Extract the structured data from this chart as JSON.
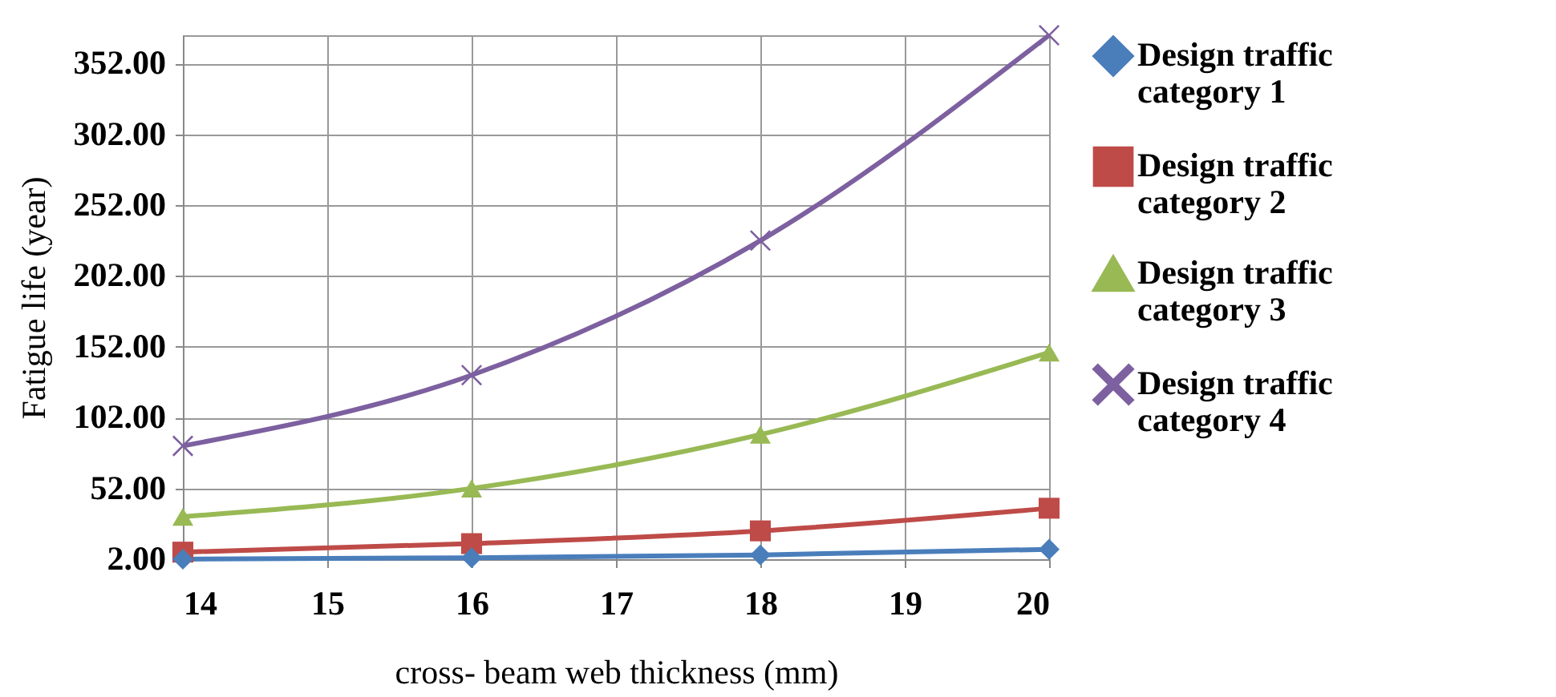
{
  "chart_data": {
    "type": "line",
    "xlabel": "cross- beam web thickness (mm)",
    "ylabel": "Fatigue life (year)",
    "x": [
      14,
      16,
      18,
      20
    ],
    "series": [
      {
        "name": "Design traffic category 1",
        "color": "#4a7ebb",
        "marker": "diamond",
        "values": [
          2,
          3,
          5,
          9
        ]
      },
      {
        "name": "Design traffic category 2",
        "color": "#be4b48",
        "marker": "square",
        "values": [
          7,
          13,
          22,
          38
        ]
      },
      {
        "name": "Design traffic category 3",
        "color": "#98b954",
        "marker": "triangle",
        "values": [
          32,
          52,
          90,
          148
        ]
      },
      {
        "name": "Design traffic category 4",
        "color": "#7d60a0",
        "marker": "cross",
        "values": [
          82,
          132,
          227,
          372
        ]
      }
    ],
    "xlim": [
      14,
      20
    ],
    "xticks": [
      14,
      15,
      16,
      17,
      18,
      19,
      20
    ],
    "ylim": [
      2,
      372
    ],
    "yticks": [
      {
        "value": 2,
        "label": "2.00"
      },
      {
        "value": 52,
        "label": "52.00"
      },
      {
        "value": 102,
        "label": "102.00"
      },
      {
        "value": 152,
        "label": "152.00"
      },
      {
        "value": 202,
        "label": "202.00"
      },
      {
        "value": 252,
        "label": "252.00"
      },
      {
        "value": 302,
        "label": "302.00"
      },
      {
        "value": 352,
        "label": "352.00"
      }
    ],
    "grid": true,
    "legend": "right",
    "line_style": "solid"
  }
}
